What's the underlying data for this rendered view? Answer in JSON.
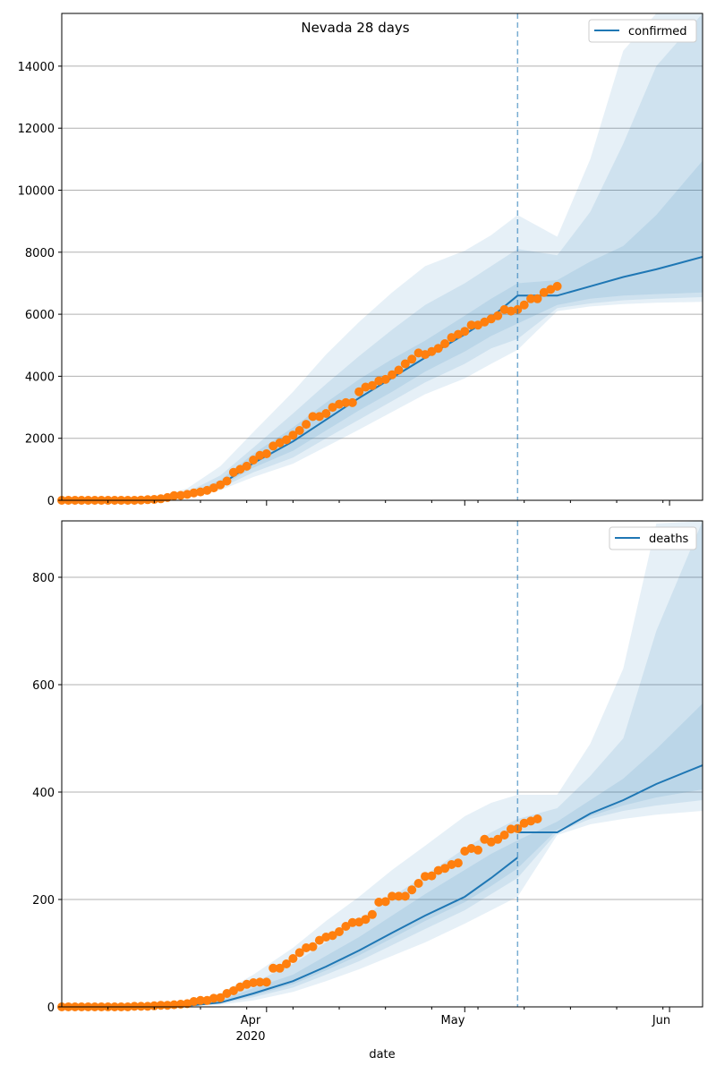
{
  "figure": {
    "title": "Nevada 28 days",
    "xlabel": "date",
    "date_tick_labels": [
      "Apr",
      "May",
      "Jun"
    ],
    "year_label": "2020",
    "colors": {
      "line": "#1f77b4",
      "observed": "#ff7f0e",
      "band": "#1f77b4",
      "forecast_start_line": "#1f77b4",
      "grid": "#b0b0b0"
    }
  },
  "chart_data": [
    {
      "type": "line",
      "title": "Nevada 28 days",
      "series_name": "confirmed",
      "legend_position": "top-right",
      "x_range": [
        "2020-03-01",
        "2020-06-06"
      ],
      "forecast_start": "2020-05-09",
      "ylim": [
        0,
        15700
      ],
      "yticks": [
        0,
        2000,
        4000,
        6000,
        8000,
        10000,
        12000,
        14000
      ],
      "grid": "horizontal",
      "observed_dates_start": "2020-03-01",
      "observed": [
        0,
        0,
        0,
        0,
        0,
        0,
        0,
        0,
        0,
        0,
        0,
        0,
        10,
        20,
        30,
        50,
        90,
        150,
        160,
        190,
        240,
        270,
        320,
        400,
        500,
        620,
        900,
        1000,
        1100,
        1300,
        1450,
        1500,
        1750,
        1850,
        1950,
        2100,
        2250,
        2450,
        2700,
        2700,
        2800,
        3000,
        3100,
        3150,
        3150,
        3500,
        3650,
        3700,
        3850,
        3900,
        4050,
        4200,
        4400,
        4550,
        4750,
        4700,
        4800,
        4900,
        5050,
        5250,
        5350,
        5450,
        5650,
        5650,
        5750,
        5850,
        5950,
        6150,
        6100,
        6150,
        6300,
        6500,
        6500,
        6700,
        6800,
        6900
      ],
      "model": {
        "dates": [
          "2020-03-01",
          "2020-03-10",
          "2020-03-15",
          "2020-03-20",
          "2020-03-25",
          "2020-03-30",
          "2020-04-05",
          "2020-04-10",
          "2020-04-15",
          "2020-04-20",
          "2020-04-25",
          "2020-05-01",
          "2020-05-05",
          "2020-05-09",
          "2020-05-15",
          "2020-05-20",
          "2020-05-25",
          "2020-05-30",
          "2020-06-06"
        ],
        "median": [
          0,
          0,
          20,
          150,
          500,
          1200,
          1900,
          2600,
          3300,
          3950,
          4600,
          5350,
          5900,
          6600,
          6600,
          6900,
          7200,
          7450,
          7850
        ],
        "bands": [
          {
            "lower": [
              0,
              0,
              10,
              80,
              330,
              750,
              1180,
              1730,
              2280,
              2850,
              3420,
              3930,
              4400,
              4850,
              6100,
              6250,
              6330,
              6370,
              6400
            ],
            "upper": [
              0,
              10,
              60,
              380,
              1100,
              2200,
              3500,
              4700,
              5750,
              6700,
              7550,
              8050,
              8550,
              9200,
              8500,
              11000,
              14500,
              16500,
              17000
            ]
          },
          {
            "lower": [
              0,
              0,
              15,
              110,
              400,
              900,
              1380,
              2000,
              2600,
              3200,
              3800,
              4400,
              4900,
              5200,
              6200,
              6350,
              6450,
              6500,
              6550
            ],
            "upper": [
              0,
              5,
              40,
              260,
              800,
              1700,
              2800,
              3750,
              4650,
              5500,
              6300,
              7000,
              7550,
              8100,
              7900,
              9300,
              11500,
              14000,
              15700
            ]
          },
          {
            "lower": [
              0,
              0,
              18,
              130,
              450,
              1050,
              1600,
              2250,
              2900,
              3500,
              4150,
              4800,
              5300,
              5700,
              6300,
              6500,
              6600,
              6650,
              6700
            ],
            "upper": [
              0,
              2,
              30,
              200,
              650,
              1500,
              2350,
              3150,
              3900,
              4550,
              5150,
              5950,
              6500,
              7000,
              7100,
              7700,
              8200,
              9200,
              10950
            ]
          }
        ]
      }
    },
    {
      "type": "line",
      "title": "",
      "series_name": "deaths",
      "legend_position": "top-right",
      "x_range": [
        "2020-03-01",
        "2020-06-06"
      ],
      "forecast_start": "2020-05-09",
      "ylim": [
        0,
        905
      ],
      "yticks": [
        0,
        200,
        400,
        600,
        800
      ],
      "grid": "horizontal",
      "observed_dates_start": "2020-03-01",
      "observed": [
        0,
        0,
        0,
        0,
        0,
        0,
        0,
        0,
        0,
        0,
        0,
        1,
        1,
        1,
        2,
        3,
        3,
        4,
        5,
        6,
        10,
        12,
        12,
        16,
        17,
        25,
        30,
        37,
        42,
        45,
        46,
        46,
        72,
        72,
        80,
        90,
        101,
        110,
        112,
        124,
        130,
        133,
        140,
        150,
        157,
        158,
        163,
        172,
        195,
        196,
        206,
        206,
        206,
        218,
        230,
        243,
        244,
        254,
        258,
        265,
        268,
        290,
        295,
        292,
        312,
        307,
        312,
        320,
        331,
        332,
        342,
        346,
        350
      ],
      "model": {
        "dates": [
          "2020-03-01",
          "2020-03-10",
          "2020-03-15",
          "2020-03-20",
          "2020-03-25",
          "2020-03-30",
          "2020-04-05",
          "2020-04-10",
          "2020-04-15",
          "2020-04-20",
          "2020-04-25",
          "2020-05-01",
          "2020-05-05",
          "2020-05-09",
          "2020-05-15",
          "2020-05-20",
          "2020-05-25",
          "2020-05-30",
          "2020-06-06"
        ],
        "median": [
          0,
          0,
          0,
          2,
          8,
          25,
          48,
          75,
          105,
          138,
          170,
          205,
          240,
          278,
          325,
          360,
          385,
          415,
          450
        ],
        "bands": [
          {
            "lower": [
              0,
              0,
              0,
              1,
              4,
              12,
              28,
              48,
              70,
              95,
              120,
              155,
              180,
              205,
              320,
              340,
              350,
              358,
              365
            ],
            "upper": [
              0,
              0,
              2,
              8,
              25,
              60,
              110,
              160,
              205,
              255,
              300,
              355,
              380,
              395,
              395,
              490,
              630,
              900,
              905
            ]
          },
          {
            "lower": [
              0,
              0,
              0,
              1,
              6,
              18,
              36,
              60,
              85,
              115,
              145,
              180,
              210,
              240,
              325,
              350,
              365,
              375,
              385
            ],
            "upper": [
              0,
              0,
              1,
              5,
              18,
              45,
              80,
              120,
              162,
              205,
              245,
              295,
              325,
              350,
              370,
              430,
              500,
              700,
              905
            ]
          },
          {
            "lower": [
              0,
              0,
              0,
              2,
              7,
              21,
              42,
              68,
              96,
              128,
              160,
              195,
              225,
              258,
              330,
              355,
              375,
              390,
              405
            ],
            "upper": [
              0,
              0,
              1,
              3,
              12,
              35,
              60,
              95,
              130,
              170,
              210,
              255,
              285,
              310,
              345,
              385,
              425,
              480,
              565
            ]
          }
        ]
      }
    }
  ]
}
